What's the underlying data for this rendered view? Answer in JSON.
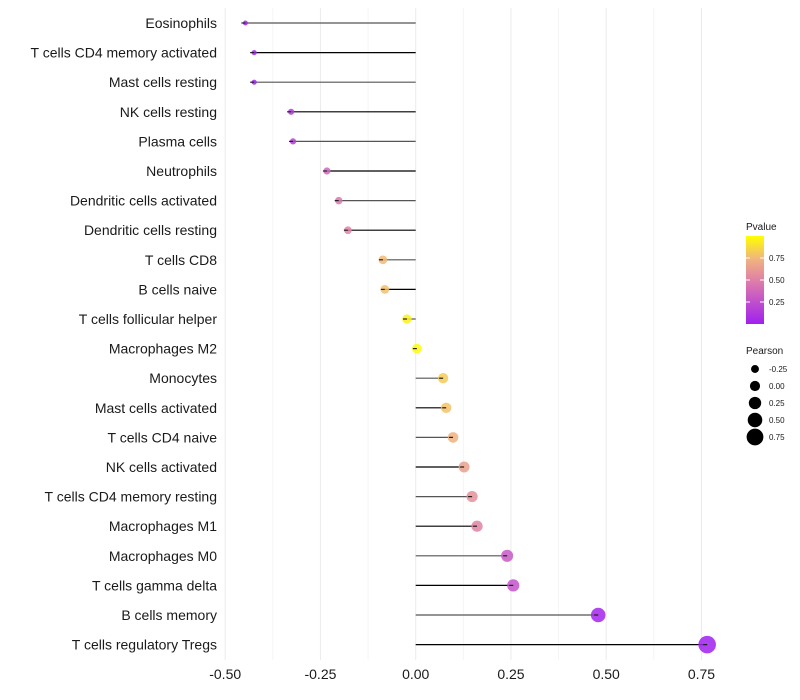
{
  "chart_data": {
    "type": "scatter",
    "subtype": "lollipop",
    "title": "",
    "xlabel": "",
    "ylabel": "",
    "xlim": [
      -0.5,
      0.78
    ],
    "xticks": [
      -0.5,
      -0.25,
      0.0,
      0.25,
      0.5,
      0.75
    ],
    "xtick_labels": [
      "-0.50",
      "-0.25",
      "0.00",
      "0.25",
      "0.50",
      "0.75"
    ],
    "grid": "vertical",
    "categories": [
      "Eosinophils",
      "T cells CD4 memory activated",
      "Mast cells resting",
      "NK cells resting",
      "Plasma cells",
      "Neutrophils",
      "Dendritic cells activated",
      "Dendritic cells resting",
      "T cells CD8",
      "B cells naive",
      "T cells follicular helper",
      "Macrophages M2",
      "Monocytes",
      "Mast cells activated",
      "T cells CD4 naive",
      "NK cells activated",
      "T cells CD4 memory resting",
      "Macrophages M1",
      "Macrophages M0",
      "T cells gamma delta",
      "B cells memory",
      "T cells regulatory  Tregs"
    ],
    "series": [
      {
        "name": "Pearson",
        "values": [
          -0.447,
          -0.424,
          -0.424,
          -0.327,
          -0.322,
          -0.233,
          -0.202,
          -0.178,
          -0.086,
          -0.081,
          -0.023,
          0.003,
          0.072,
          0.08,
          0.098,
          0.127,
          0.148,
          0.161,
          0.24,
          0.256,
          0.479,
          0.765
        ]
      },
      {
        "name": "Pvalue",
        "values": [
          0.02,
          0.02,
          0.02,
          0.15,
          0.16,
          0.37,
          0.45,
          0.52,
          0.76,
          0.78,
          0.95,
          0.99,
          0.82,
          0.79,
          0.73,
          0.65,
          0.58,
          0.52,
          0.3,
          0.27,
          0.02,
          0.0
        ]
      }
    ],
    "legends": [
      {
        "title": "Pvalue",
        "type": "colorbar",
        "ticks": [
          0.25,
          0.5,
          0.75
        ],
        "tick_labels": [
          "0.25",
          "0.50",
          "0.75"
        ],
        "range": [
          0,
          1
        ],
        "colors": [
          "#a020f0",
          "#ffff00"
        ],
        "placement": "right"
      },
      {
        "title": "Pearson",
        "type": "size",
        "values": [
          -0.25,
          0.0,
          0.25,
          0.5,
          0.75
        ],
        "labels": [
          "-0.25",
          "0.00",
          "0.25",
          "0.50",
          "0.75"
        ],
        "placement": "right"
      }
    ]
  }
}
